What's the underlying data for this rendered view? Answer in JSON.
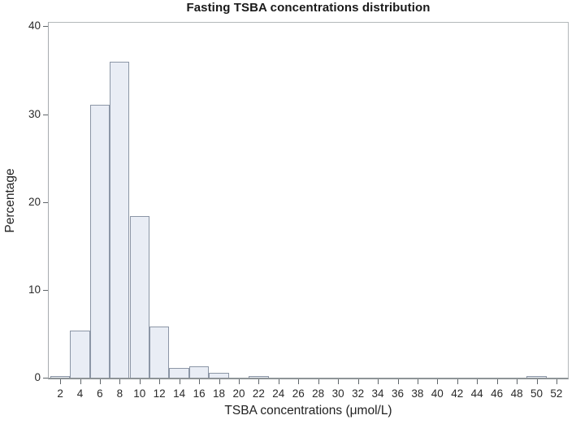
{
  "title": "Fasting TSBA concentrations distribution",
  "x_axis_title": "TSBA concentrations (μmol/L)",
  "y_axis_title": "Percentage",
  "chart_data": {
    "type": "bar",
    "subtype": "histogram",
    "title": "Fasting TSBA concentrations distribution",
    "xlabel": "TSBA concentrations (μmol/L)",
    "ylabel": "Percentage",
    "bin_width": 2,
    "bin_midpoints": [
      2,
      4,
      6,
      8,
      10,
      12,
      14,
      16,
      18,
      20,
      22,
      24,
      26,
      28,
      30,
      32,
      34,
      36,
      38,
      40,
      42,
      44,
      46,
      48,
      50,
      52
    ],
    "values": [
      0.2,
      5.4,
      31.1,
      36.0,
      18.4,
      5.8,
      1.1,
      1.3,
      0.6,
      0,
      0.2,
      0,
      0,
      0,
      0,
      0,
      0,
      0,
      0,
      0,
      0,
      0,
      0,
      0,
      0.2,
      0
    ],
    "x_ticks": [
      2,
      4,
      6,
      8,
      10,
      12,
      14,
      16,
      18,
      20,
      22,
      24,
      26,
      28,
      30,
      32,
      34,
      36,
      38,
      40,
      42,
      44,
      46,
      48,
      50,
      52
    ],
    "y_ticks": [
      0,
      10,
      20,
      30,
      40
    ],
    "xlim": [
      0.85,
      53.15
    ],
    "ylim": [
      0,
      40.4
    ],
    "grid": false,
    "legend": "none",
    "bar_fill_color": "#e9edf5",
    "bar_border_color": "#8c96a6",
    "frame_color": "#b3b8ba",
    "tick_color": "#5f6569",
    "text_color": "#2a2a2a"
  }
}
